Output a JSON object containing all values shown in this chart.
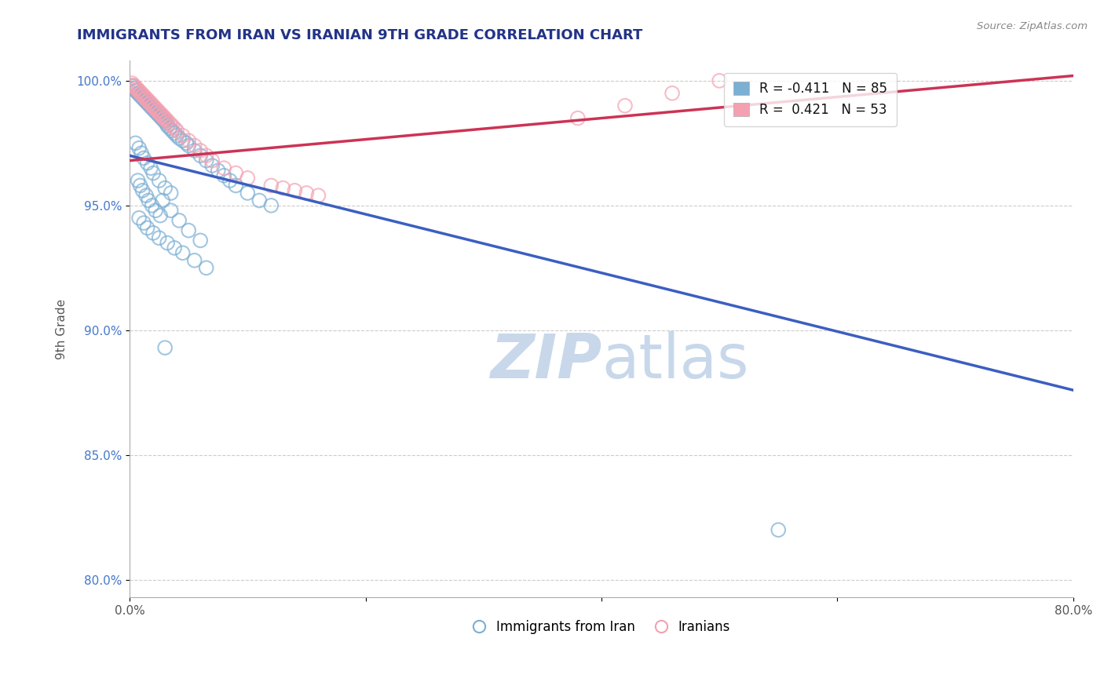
{
  "title": "IMMIGRANTS FROM IRAN VS IRANIAN 9TH GRADE CORRELATION CHART",
  "source": "Source: ZipAtlas.com",
  "ylabel": "9th Grade",
  "xmin": 0.0,
  "xmax": 0.8,
  "ymin": 0.793,
  "ymax": 1.008,
  "yticks": [
    0.8,
    0.85,
    0.9,
    0.95,
    1.0
  ],
  "ytick_labels": [
    "80.0%",
    "85.0%",
    "90.0%",
    "95.0%",
    "100.0%"
  ],
  "xticks": [
    0.0,
    0.2,
    0.4,
    0.6,
    0.8
  ],
  "xtick_labels": [
    "0.0%",
    "",
    "",
    "",
    "80.0%"
  ],
  "legend_blue_label": "Immigrants from Iran",
  "legend_pink_label": "Iranians",
  "R_blue": -0.411,
  "N_blue": 85,
  "R_pink": 0.421,
  "N_pink": 53,
  "blue_color": "#7bafd4",
  "pink_color": "#f4a0b0",
  "blue_line_color": "#3b5fc0",
  "pink_line_color": "#cc3355",
  "watermark_zip": "ZIP",
  "watermark_atlas": "atlas",
  "watermark_color": "#c8d8ea",
  "blue_line_x0": 0.0,
  "blue_line_y0": 0.97,
  "blue_line_x1": 0.8,
  "blue_line_y1": 0.876,
  "pink_line_x0": 0.0,
  "pink_line_y0": 0.968,
  "pink_line_x1": 0.8,
  "pink_line_y1": 1.002,
  "blue_scatter_x": [
    0.002,
    0.003,
    0.004,
    0.005,
    0.006,
    0.007,
    0.008,
    0.009,
    0.01,
    0.011,
    0.012,
    0.013,
    0.014,
    0.015,
    0.016,
    0.017,
    0.018,
    0.019,
    0.02,
    0.021,
    0.022,
    0.023,
    0.024,
    0.025,
    0.026,
    0.027,
    0.028,
    0.029,
    0.03,
    0.031,
    0.032,
    0.034,
    0.036,
    0.038,
    0.04,
    0.042,
    0.045,
    0.048,
    0.05,
    0.055,
    0.06,
    0.065,
    0.07,
    0.075,
    0.08,
    0.085,
    0.09,
    0.1,
    0.11,
    0.12,
    0.005,
    0.008,
    0.01,
    0.012,
    0.015,
    0.018,
    0.02,
    0.025,
    0.03,
    0.035,
    0.007,
    0.009,
    0.011,
    0.014,
    0.016,
    0.019,
    0.022,
    0.026,
    0.008,
    0.012,
    0.015,
    0.02,
    0.025,
    0.032,
    0.038,
    0.045,
    0.055,
    0.065,
    0.028,
    0.035,
    0.042,
    0.05,
    0.06,
    0.55,
    0.03
  ],
  "blue_scatter_y": [
    0.998,
    0.997,
    0.997,
    0.996,
    0.996,
    0.995,
    0.995,
    0.994,
    0.994,
    0.993,
    0.993,
    0.992,
    0.992,
    0.991,
    0.991,
    0.99,
    0.99,
    0.989,
    0.989,
    0.988,
    0.988,
    0.987,
    0.987,
    0.986,
    0.986,
    0.985,
    0.985,
    0.984,
    0.984,
    0.983,
    0.982,
    0.981,
    0.98,
    0.979,
    0.978,
    0.977,
    0.976,
    0.975,
    0.974,
    0.972,
    0.97,
    0.968,
    0.966,
    0.964,
    0.962,
    0.96,
    0.958,
    0.955,
    0.952,
    0.95,
    0.975,
    0.973,
    0.971,
    0.969,
    0.967,
    0.965,
    0.963,
    0.96,
    0.957,
    0.955,
    0.96,
    0.958,
    0.956,
    0.954,
    0.952,
    0.95,
    0.948,
    0.946,
    0.945,
    0.943,
    0.941,
    0.939,
    0.937,
    0.935,
    0.933,
    0.931,
    0.928,
    0.925,
    0.952,
    0.948,
    0.944,
    0.94,
    0.936,
    0.82,
    0.893
  ],
  "pink_scatter_x": [
    0.002,
    0.003,
    0.004,
    0.005,
    0.006,
    0.007,
    0.008,
    0.009,
    0.01,
    0.011,
    0.012,
    0.013,
    0.014,
    0.015,
    0.016,
    0.017,
    0.018,
    0.019,
    0.02,
    0.021,
    0.022,
    0.023,
    0.024,
    0.025,
    0.026,
    0.027,
    0.028,
    0.029,
    0.03,
    0.031,
    0.032,
    0.034,
    0.036,
    0.038,
    0.04,
    0.045,
    0.05,
    0.055,
    0.06,
    0.065,
    0.07,
    0.08,
    0.09,
    0.1,
    0.12,
    0.13,
    0.14,
    0.15,
    0.16,
    0.38,
    0.42,
    0.46,
    0.5
  ],
  "pink_scatter_y": [
    0.999,
    0.998,
    0.998,
    0.997,
    0.997,
    0.996,
    0.996,
    0.995,
    0.995,
    0.994,
    0.994,
    0.993,
    0.993,
    0.992,
    0.992,
    0.991,
    0.991,
    0.99,
    0.99,
    0.989,
    0.989,
    0.988,
    0.988,
    0.987,
    0.987,
    0.986,
    0.986,
    0.985,
    0.985,
    0.984,
    0.984,
    0.983,
    0.982,
    0.981,
    0.98,
    0.978,
    0.976,
    0.974,
    0.972,
    0.97,
    0.968,
    0.965,
    0.963,
    0.961,
    0.958,
    0.957,
    0.956,
    0.955,
    0.954,
    0.985,
    0.99,
    0.995,
    1.0
  ]
}
